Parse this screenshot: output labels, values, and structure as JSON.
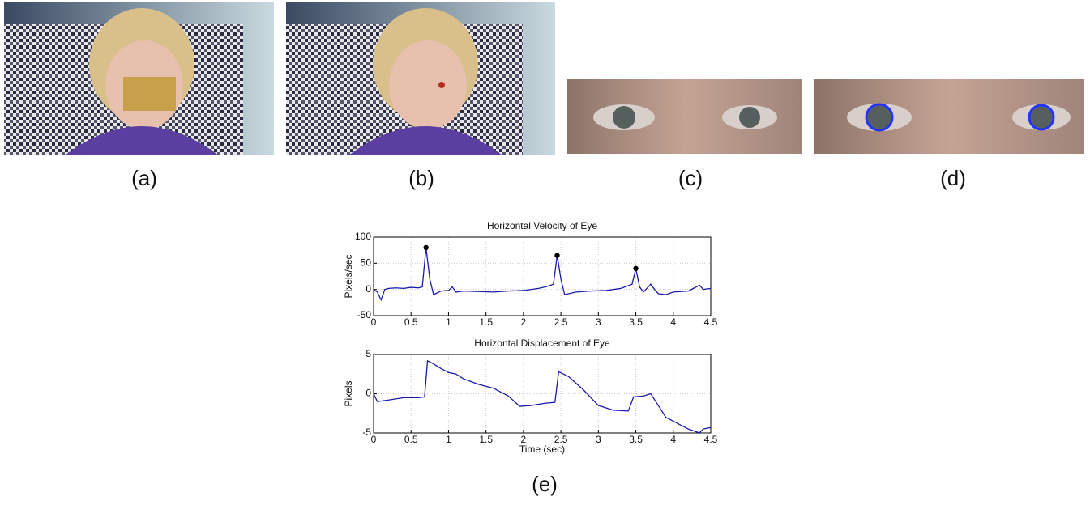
{
  "panels": {
    "a": "(a)",
    "b": "(b)",
    "c": "(c)",
    "d": "(d)",
    "e": "(e)"
  },
  "chart_data": [
    {
      "type": "line",
      "title": "Horizontal Velocity of Eye",
      "y_label": "Pixels/sec",
      "color": "#1a1aa8",
      "grid": true,
      "xlim": [
        0,
        4.5
      ],
      "xticks": [
        0,
        0.5,
        1,
        1.5,
        2,
        2.5,
        3,
        3.5,
        4,
        4.5
      ],
      "ylim": [
        -50,
        100
      ],
      "yticks": [
        -50,
        0,
        50,
        100
      ],
      "x": [
        0,
        0.05,
        0.1,
        0.15,
        0.2,
        0.3,
        0.4,
        0.5,
        0.6,
        0.65,
        0.7,
        0.75,
        0.8,
        0.9,
        1.0,
        1.05,
        1.1,
        1.2,
        1.4,
        1.6,
        1.8,
        2.0,
        2.2,
        2.3,
        2.4,
        2.45,
        2.5,
        2.55,
        2.7,
        2.9,
        3.1,
        3.3,
        3.45,
        3.5,
        3.55,
        3.6,
        3.7,
        3.75,
        3.8,
        3.9,
        4.0,
        4.2,
        4.35,
        4.4,
        4.5
      ],
      "values": [
        0,
        -5,
        -20,
        0,
        2,
        3,
        2,
        4,
        3,
        5,
        80,
        20,
        -10,
        -3,
        -2,
        5,
        -5,
        -3,
        -4,
        -5,
        -3,
        -2,
        2,
        5,
        10,
        65,
        20,
        -10,
        -5,
        -3,
        -2,
        2,
        10,
        40,
        5,
        -5,
        10,
        0,
        -8,
        -10,
        -5,
        -3,
        8,
        0,
        2
      ],
      "peaks": {
        "x": [
          0.7,
          2.45,
          3.5
        ],
        "values": [
          80,
          65,
          40
        ]
      }
    },
    {
      "type": "line",
      "title": "Horizontal Displacement of Eye",
      "y_label": "Pixels",
      "x_label": "Time (sec)",
      "color": "#1a1aa8",
      "grid": true,
      "xlim": [
        0,
        4.5
      ],
      "xticks": [
        0,
        0.5,
        1,
        1.5,
        2,
        2.5,
        3,
        3.5,
        4,
        4.5
      ],
      "ylim": [
        -5,
        5
      ],
      "yticks": [
        -5,
        0,
        5
      ],
      "x": [
        0,
        0.05,
        0.2,
        0.4,
        0.6,
        0.68,
        0.72,
        0.8,
        0.9,
        1.0,
        1.1,
        1.2,
        1.4,
        1.6,
        1.8,
        1.95,
        2.1,
        2.3,
        2.42,
        2.47,
        2.6,
        2.8,
        3.0,
        3.2,
        3.4,
        3.47,
        3.6,
        3.7,
        3.8,
        3.9,
        4.0,
        4.2,
        4.35,
        4.4,
        4.5
      ],
      "values": [
        0,
        -1,
        -0.8,
        -0.5,
        -0.5,
        -0.4,
        4.2,
        3.8,
        3.2,
        2.7,
        2.5,
        1.9,
        1.2,
        0.7,
        -0.3,
        -1.6,
        -1.5,
        -1.2,
        -1.1,
        2.8,
        2.2,
        0.5,
        -1.5,
        -2.1,
        -2.2,
        -0.4,
        -0.3,
        0,
        -1.5,
        -3,
        -3.5,
        -4.5,
        -5,
        -4.5,
        -4.3
      ]
    }
  ]
}
